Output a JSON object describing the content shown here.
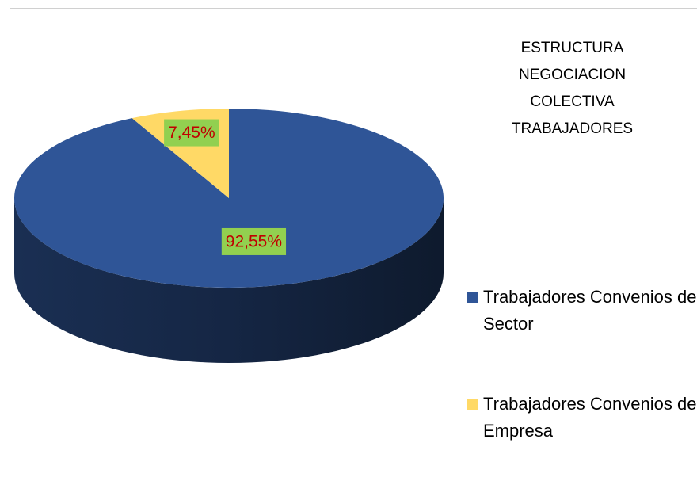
{
  "chart_data": {
    "type": "pie",
    "title": "ESTRUCTURA NEGOCIACION COLECTIVA TRABAJADORES",
    "series": [
      {
        "name": "Trabajadores Convenios de Sector",
        "color": "#2f5597",
        "values": [
          92.55
        ],
        "value_labels": [
          "92,55%"
        ]
      },
      {
        "name": "Trabajadores Convenios de Empresa",
        "color": "#ffd966",
        "values": [
          7.45
        ],
        "value_labels": [
          "7,45%"
        ]
      }
    ],
    "legend": "right"
  }
}
